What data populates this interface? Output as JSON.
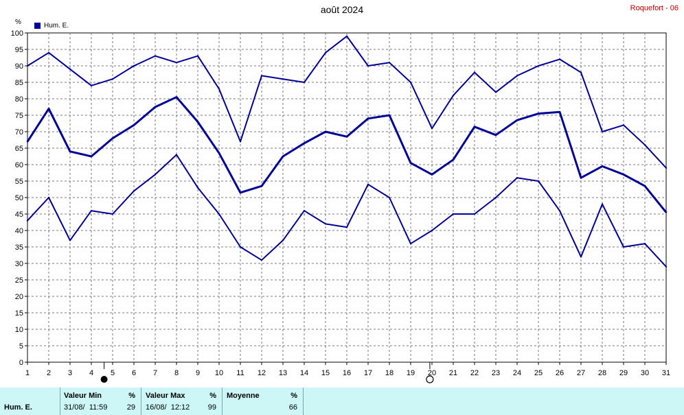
{
  "title": "août 2024",
  "station": "Roquefort - 06",
  "legend": {
    "label": "Hum. E.",
    "color": "#000099"
  },
  "unit_label": "%",
  "chart_data": {
    "type": "line",
    "x": [
      1,
      2,
      3,
      4,
      5,
      6,
      7,
      8,
      9,
      10,
      11,
      12,
      13,
      14,
      15,
      16,
      17,
      18,
      19,
      20,
      21,
      22,
      23,
      24,
      25,
      26,
      27,
      28,
      29,
      30,
      31
    ],
    "xlim": [
      1,
      31
    ],
    "ylim": [
      0,
      100
    ],
    "yticks": [
      0,
      5,
      10,
      15,
      20,
      25,
      30,
      35,
      40,
      45,
      50,
      55,
      60,
      65,
      70,
      75,
      80,
      85,
      90,
      95,
      100
    ],
    "grid": true,
    "legend_position": "top-left",
    "series": [
      {
        "role": "max",
        "values": [
          90,
          94,
          89,
          84,
          86,
          90,
          93,
          91,
          93,
          83,
          67,
          87,
          86,
          85,
          94,
          99,
          90,
          91,
          85,
          71,
          81,
          88,
          82,
          87,
          90,
          92,
          88,
          70,
          72,
          66,
          59
        ]
      },
      {
        "name": "Hum. E.",
        "role": "mean",
        "values": [
          67,
          77,
          64,
          62.5,
          68,
          72,
          77.5,
          80.5,
          73,
          63.5,
          51.5,
          53.5,
          62.5,
          66.5,
          70,
          68.5,
          74,
          75,
          60.5,
          57,
          61.5,
          71.5,
          69,
          73.5,
          75.5,
          76,
          56,
          59.5,
          57,
          53.5,
          45.5
        ]
      },
      {
        "role": "min",
        "values": [
          43,
          50,
          37,
          46,
          45,
          52,
          57,
          63,
          53,
          45,
          35,
          31,
          37,
          46,
          42,
          41,
          54,
          50,
          36,
          40,
          45,
          45,
          50,
          56,
          55,
          46,
          32,
          48,
          35,
          36,
          29
        ]
      }
    ],
    "moon_phases": [
      {
        "day": 4.6,
        "phase": "new-moon"
      },
      {
        "day": 19.9,
        "phase": "full-moon"
      }
    ]
  },
  "summary": {
    "row_label": "Hum. E.",
    "min": {
      "header": "Valeur Min",
      "unit": "%",
      "datetime": "31/08/  11:59",
      "value": "29"
    },
    "max": {
      "header": "Valeur Max",
      "unit": "%",
      "datetime": "16/08/  12:12",
      "value": "99"
    },
    "avg": {
      "header": "Moyenne",
      "unit": "%",
      "value": "66"
    }
  }
}
